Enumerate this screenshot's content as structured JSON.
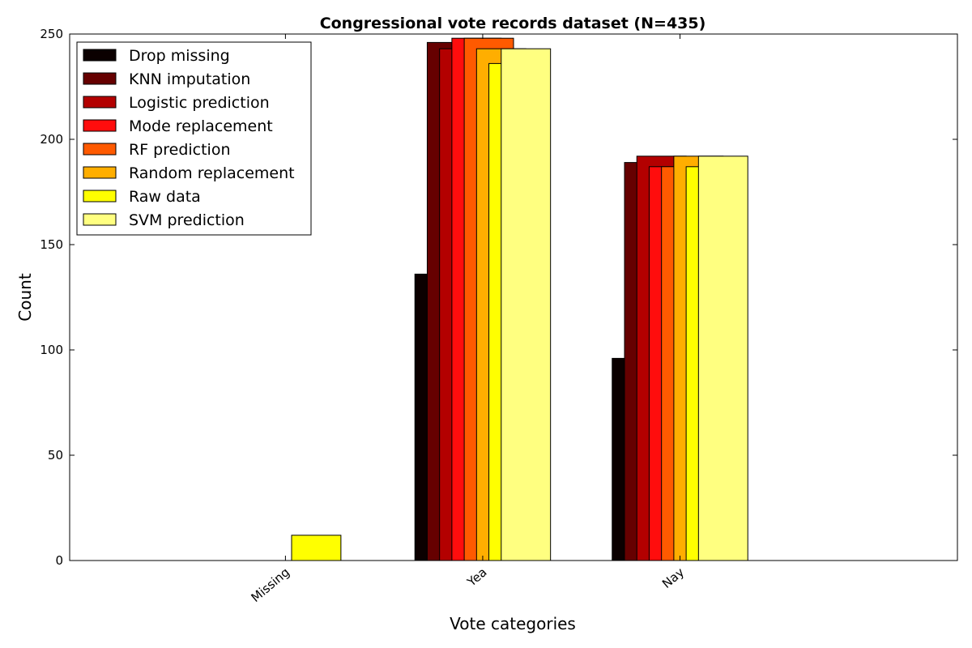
{
  "chart_data": {
    "type": "bar",
    "title": "Congressional vote records dataset (N=435)",
    "xlabel": "Vote categories",
    "ylabel": "Count",
    "categories": [
      "Missing",
      "Yea",
      "Nay"
    ],
    "ylim": [
      0,
      250
    ],
    "yticks": [
      0,
      50,
      100,
      150,
      200,
      250
    ],
    "legend_position": "top-left",
    "grid": false,
    "series": [
      {
        "name": "Drop missing",
        "color": "#0b0000",
        "values": [
          0,
          136,
          96
        ]
      },
      {
        "name": "KNN imputation",
        "color": "#660000",
        "values": [
          0,
          246,
          189
        ]
      },
      {
        "name": "Logistic prediction",
        "color": "#b30000",
        "values": [
          0,
          243,
          192
        ]
      },
      {
        "name": "Mode replacement",
        "color": "#ff0d0d",
        "values": [
          0,
          248,
          187
        ]
      },
      {
        "name": "RF prediction",
        "color": "#ff5a00",
        "values": [
          0,
          248,
          187
        ]
      },
      {
        "name": "Random replacement",
        "color": "#ffae00",
        "values": [
          0,
          243,
          192
        ]
      },
      {
        "name": "Raw data",
        "color": "#ffff00",
        "values": [
          12,
          236,
          187
        ]
      },
      {
        "name": "SVM prediction",
        "color": "#ffff80",
        "values": [
          0,
          243,
          192
        ]
      }
    ]
  }
}
